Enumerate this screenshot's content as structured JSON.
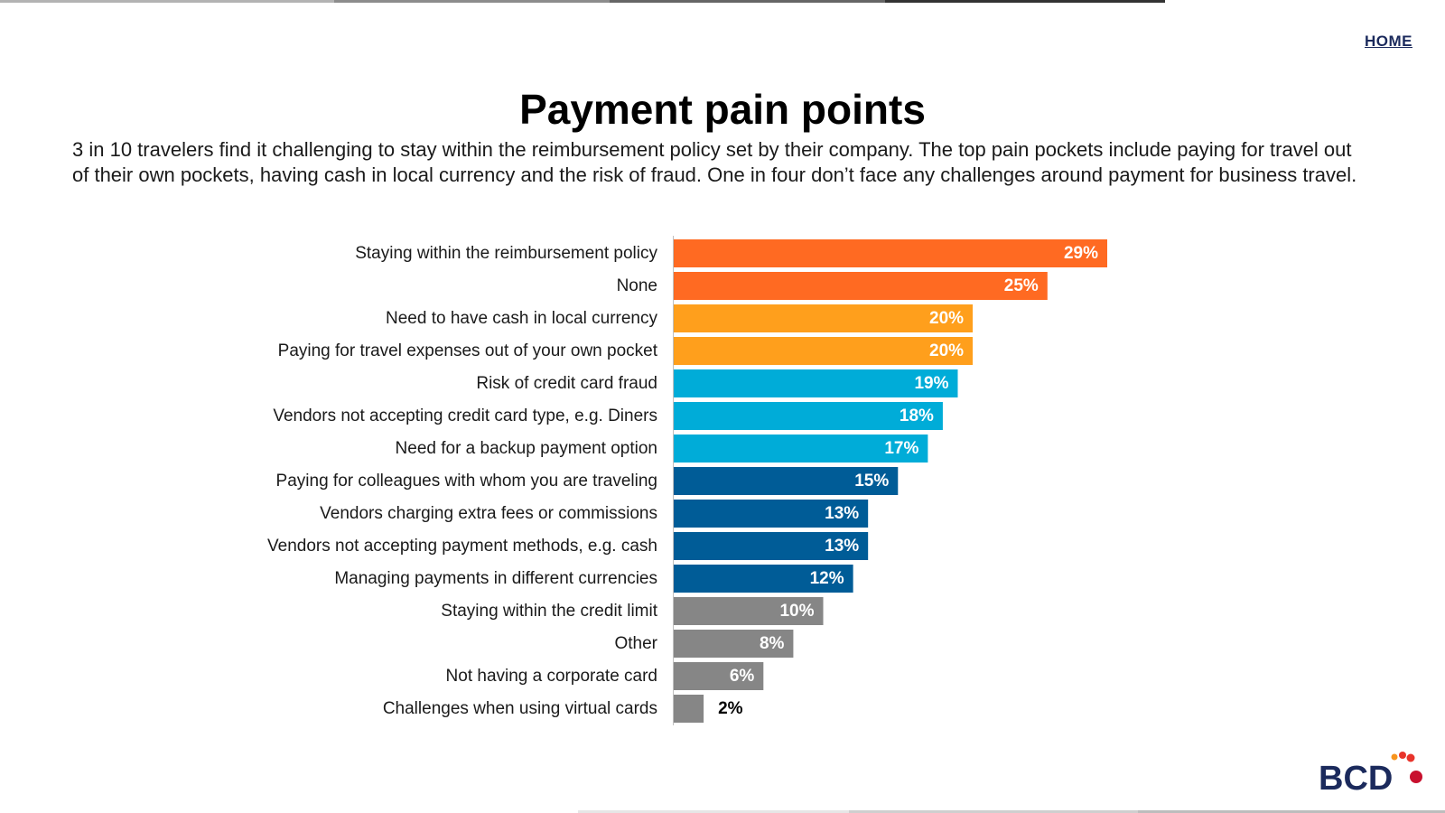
{
  "header": {
    "home_label": "HOME",
    "title": "Payment pain points",
    "subtitle": "3 in 10 travelers find it challenging to stay within the reimbursement policy set by their company. The top pain pockets include paying for travel out of their own pockets, having cash in local currency and the risk of fraud. One in four don’t face any challenges around payment for business travel."
  },
  "logo": {
    "text": "BCD",
    "brand_color": "#1b2a5c",
    "dot_colors": [
      "#e8342b",
      "#f7941d",
      "#c8102e"
    ]
  },
  "chart_data": {
    "type": "bar",
    "orientation": "horizontal",
    "title": "",
    "xlabel": "",
    "ylabel": "",
    "xlim": [
      0,
      29
    ],
    "grid": false,
    "legend": "none",
    "value_suffix": "%",
    "categories": [
      "Staying within the reimbursement policy",
      "None",
      "Need to have cash in local currency",
      "Paying for travel expenses out of your own pocket",
      "Risk of credit card fraud",
      "Vendors not accepting credit card type, e.g. Diners",
      "Need for a backup payment option",
      "Paying for colleagues with whom you are traveling",
      "Vendors charging extra fees or commissions",
      "Vendors not accepting payment methods, e.g. cash",
      "Managing payments in different currencies",
      "Staying within the credit limit",
      "Other",
      "Not having a corporate card",
      "Challenges when using virtual cards"
    ],
    "values": [
      29,
      25,
      20,
      20,
      19,
      18,
      17,
      15,
      13,
      13,
      12,
      10,
      8,
      6,
      2
    ],
    "bar_colors": [
      "#ff6a22",
      "#ff6a22",
      "#ff9f1c",
      "#ff9f1c",
      "#00acd8",
      "#00acd8",
      "#00acd8",
      "#005c97",
      "#005c97",
      "#005c97",
      "#005c97",
      "#868686",
      "#868686",
      "#868686",
      "#868686"
    ]
  },
  "decor": {
    "top_rule_colors": [
      "#b3b3b3",
      "#8c8c8c",
      "#666666",
      "#333333"
    ],
    "bottom_rule_colors": [
      "#e6e6e6",
      "#cfcfcf",
      "#bdbdbd"
    ]
  }
}
